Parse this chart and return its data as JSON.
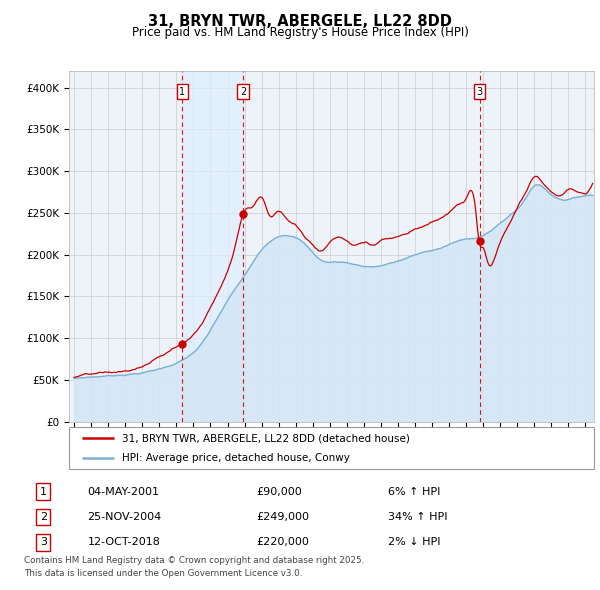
{
  "title": "31, BRYN TWR, ABERGELE, LL22 8DD",
  "subtitle": "Price paid vs. HM Land Registry's House Price Index (HPI)",
  "ylabel_ticks": [
    "£0",
    "£50K",
    "£100K",
    "£150K",
    "£200K",
    "£250K",
    "£300K",
    "£350K",
    "£400K"
  ],
  "ytick_vals": [
    0,
    50000,
    100000,
    150000,
    200000,
    250000,
    300000,
    350000,
    400000
  ],
  "ylim": [
    0,
    420000
  ],
  "xlim_start": 1994.7,
  "xlim_end": 2025.5,
  "hpi_color": "#7ab0d4",
  "hpi_fill_color": "#d4e6f5",
  "price_color": "#cc0000",
  "vline_color": "#cc0000",
  "shade_color": "#ddeeff",
  "transactions": [
    {
      "num": 1,
      "date": "04-MAY-2001",
      "price": 90000,
      "pct": "6%",
      "dir": "↑",
      "x": 2001.35
    },
    {
      "num": 2,
      "date": "25-NOV-2004",
      "price": 249000,
      "pct": "34%",
      "dir": "↑",
      "x": 2004.92
    },
    {
      "num": 3,
      "date": "12-OCT-2018",
      "price": 220000,
      "pct": "2%",
      "dir": "↓",
      "x": 2018.79
    }
  ],
  "legend_label_price": "31, BRYN TWR, ABERGELE, LL22 8DD (detached house)",
  "legend_label_hpi": "HPI: Average price, detached house, Conwy",
  "footnote": "Contains HM Land Registry data © Crown copyright and database right 2025.\nThis data is licensed under the Open Government Licence v3.0.",
  "background_color": "#ffffff",
  "grid_color": "#cccccc",
  "ax_bg_color": "#eef3f9"
}
